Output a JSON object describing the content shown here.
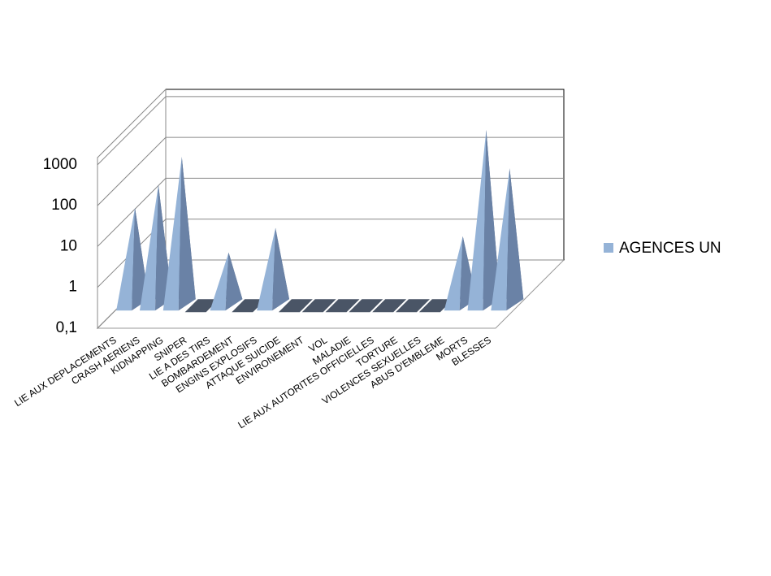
{
  "chart_data": {
    "type": "pyramid3d",
    "categories": [
      "LIE AUX DEPLACEMENTS",
      "CRASH AERIENS",
      "KIDNAPPING",
      "SNIPER",
      "LIE A DES TIRS",
      "BOMBARDEMENT",
      "ENGINS EXPLOSIFS",
      "ATTAQUE SUICIDE",
      "ENVIRONEMENT",
      "VOL",
      "MALADIE",
      "LIE AUX AUTORITES OFFICIELLES",
      "TORTURE",
      "VIOLENCES SEXUELLES",
      "ABUS D'EMBLEME",
      "MORTS",
      "BLESSES"
    ],
    "series": [
      {
        "name": "AGENCES UN",
        "color": "#95b3d7",
        "values": [
          25,
          90,
          440,
          0,
          2,
          0,
          8,
          0,
          0,
          0,
          0,
          0,
          0,
          0,
          5,
          2000,
          230
        ]
      }
    ],
    "log_scale": true,
    "ylim": [
      0.1,
      1500
    ],
    "yticks": [
      {
        "value": 0.1,
        "label": "0,1"
      },
      1,
      10,
      100,
      1000
    ],
    "grid": true,
    "legend": "right"
  }
}
